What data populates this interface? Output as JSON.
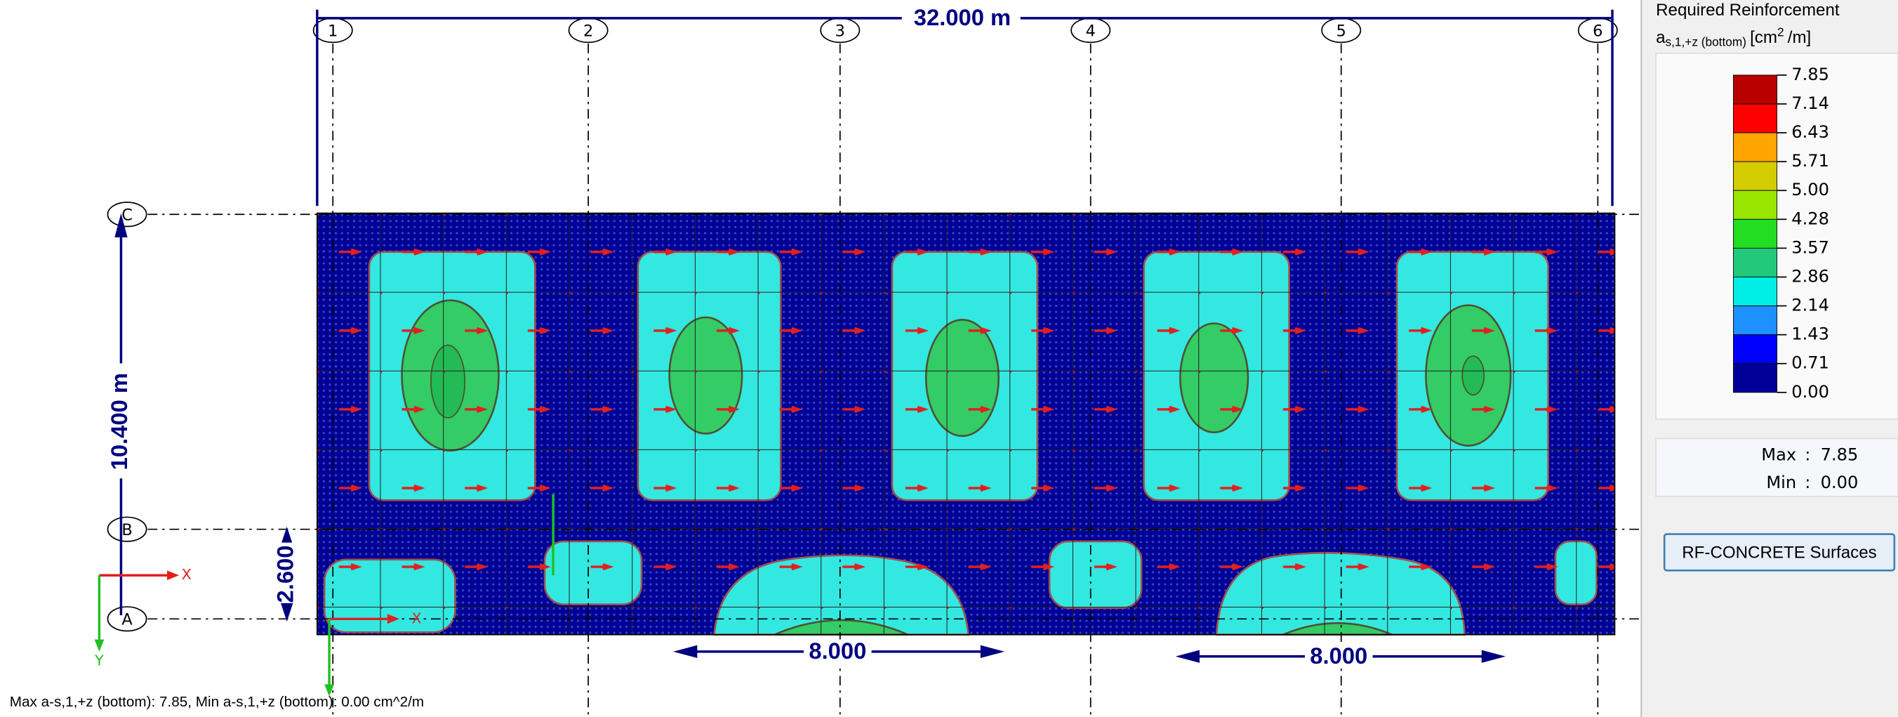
{
  "grid": {
    "columns": [
      "1",
      "2",
      "3",
      "4",
      "5",
      "6"
    ],
    "rows": [
      "C",
      "B",
      "A"
    ]
  },
  "dimensions": {
    "total_x": "32.000 m",
    "total_y": "10.400 m",
    "bay_y": "2.600",
    "span_left": "8.000",
    "span_right": "8.000"
  },
  "axes": {
    "global_x": "X",
    "global_y": "Y",
    "local_x": "X"
  },
  "status": "Max a-s,1,+z (bottom): 7.85, Min a-s,1,+z (bottom): 0.00 cm^2/m",
  "panel": {
    "title": "Required Reinforcement",
    "subtitle": {
      "symbol": "a",
      "subscript": "s,1,+z (bottom)",
      "unit_open": "[cm",
      "unit_power": "2",
      "unit_close": "/m]"
    },
    "legend": {
      "labels": [
        "7.85",
        "7.14",
        "6.43",
        "5.71",
        "5.00",
        "4.28",
        "3.57",
        "2.86",
        "2.14",
        "1.43",
        "0.71",
        "0.00"
      ],
      "colors": [
        "#b80000",
        "#ff0000",
        "#ffa500",
        "#d4cc00",
        "#99e600",
        "#22dd22",
        "#22c97a",
        "#00eee6",
        "#1e90ff",
        "#0000ff",
        "#000099"
      ]
    },
    "max_label": "Max",
    "max_value": "7.85",
    "min_label": "Min",
    "min_value": "0.00",
    "button": "RF-CONCRETE Surfaces"
  }
}
